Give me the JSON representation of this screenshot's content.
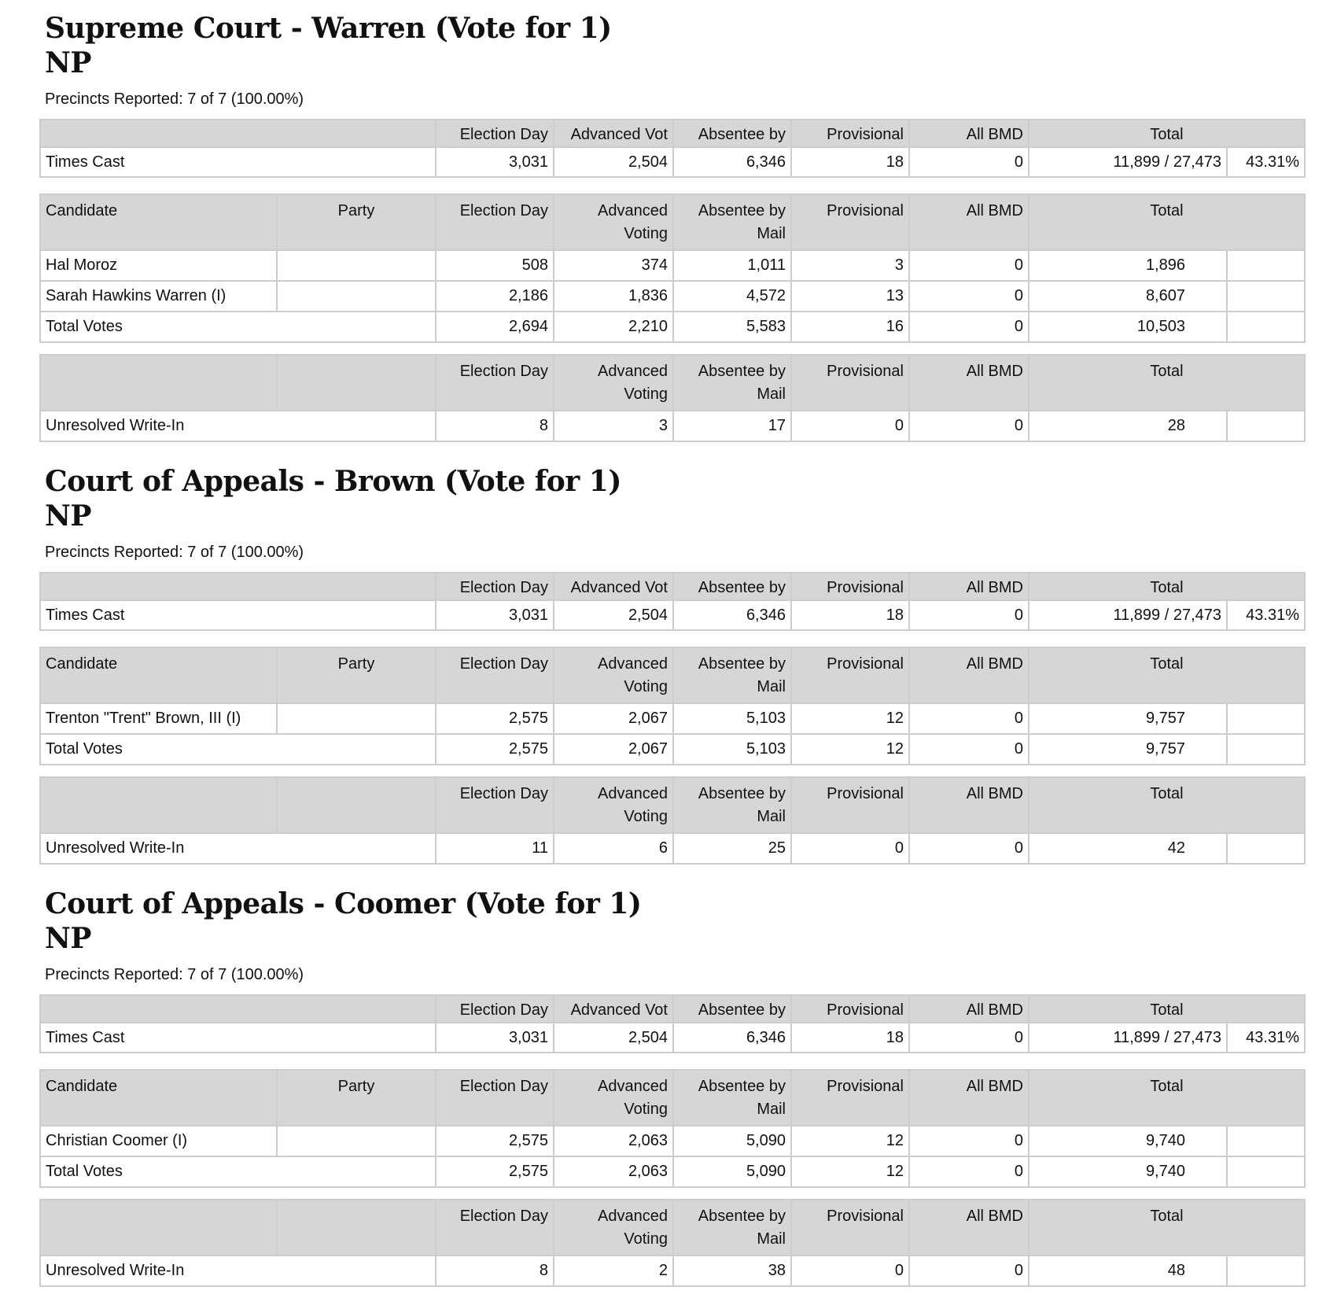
{
  "headers": {
    "election_day": "Election Day",
    "advanced_short": "Advanced Vot",
    "absentee_short": "Absentee by",
    "advanced": "Advanced Voting",
    "absentee": "Absentee by Mail",
    "provisional": "Provisional",
    "all_bmd": "All BMD",
    "total": "Total",
    "candidate": "Candidate",
    "party": "Party"
  },
  "contests": [
    {
      "title": "Supreme Court - Warren (Vote for  1)",
      "subtitle": "NP",
      "precincts": "Precincts Reported: 7 of 7 (100.00%)",
      "times_cast": {
        "label": "Times Cast",
        "values": [
          "3,031",
          "2,504",
          "6,346",
          "18",
          "0"
        ],
        "total": "11,899 / 27,473",
        "pct": "43.31%"
      },
      "candidates": [
        {
          "name": "Hal Moroz",
          "party": "",
          "values": [
            "508",
            "374",
            "1,011",
            "3",
            "0"
          ],
          "total": "1,896"
        },
        {
          "name": "Sarah Hawkins Warren (I)",
          "party": "",
          "values": [
            "2,186",
            "1,836",
            "4,572",
            "13",
            "0"
          ],
          "total": "8,607"
        }
      ],
      "total_votes": {
        "label": "Total Votes",
        "values": [
          "2,694",
          "2,210",
          "5,583",
          "16",
          "0"
        ],
        "total": "10,503"
      },
      "write_in": {
        "label": "Unresolved Write-In",
        "values": [
          "8",
          "3",
          "17",
          "0",
          "0"
        ],
        "total": "28"
      }
    },
    {
      "title": "Court of Appeals - Brown (Vote for  1)",
      "subtitle": "NP",
      "precincts": "Precincts Reported: 7 of 7 (100.00%)",
      "times_cast": {
        "label": "Times Cast",
        "values": [
          "3,031",
          "2,504",
          "6,346",
          "18",
          "0"
        ],
        "total": "11,899 / 27,473",
        "pct": "43.31%"
      },
      "candidates": [
        {
          "name": "Trenton \"Trent\" Brown, III (I)",
          "party": "",
          "values": [
            "2,575",
            "2,067",
            "5,103",
            "12",
            "0"
          ],
          "total": "9,757"
        }
      ],
      "total_votes": {
        "label": "Total Votes",
        "values": [
          "2,575",
          "2,067",
          "5,103",
          "12",
          "0"
        ],
        "total": "9,757"
      },
      "write_in": {
        "label": "Unresolved Write-In",
        "values": [
          "11",
          "6",
          "25",
          "0",
          "0"
        ],
        "total": "42"
      }
    },
    {
      "title": "Court of Appeals - Coomer (Vote for  1)",
      "subtitle": "NP",
      "precincts": "Precincts Reported: 7 of 7 (100.00%)",
      "times_cast": {
        "label": "Times Cast",
        "values": [
          "3,031",
          "2,504",
          "6,346",
          "18",
          "0"
        ],
        "total": "11,899 / 27,473",
        "pct": "43.31%"
      },
      "candidates": [
        {
          "name": "Christian Coomer (I)",
          "party": "",
          "values": [
            "2,575",
            "2,063",
            "5,090",
            "12",
            "0"
          ],
          "total": "9,740"
        }
      ],
      "total_votes": {
        "label": "Total Votes",
        "values": [
          "2,575",
          "2,063",
          "5,090",
          "12",
          "0"
        ],
        "total": "9,740"
      },
      "write_in": {
        "label": "Unresolved Write-In",
        "values": [
          "8",
          "2",
          "38",
          "0",
          "0"
        ],
        "total": "48"
      }
    }
  ]
}
